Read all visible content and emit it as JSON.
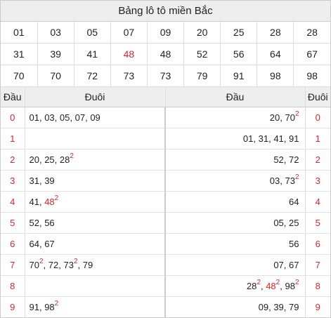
{
  "title": "Bảng lô tô miền Bắc",
  "numbers": [
    [
      "01",
      "03",
      "05",
      "07",
      "09",
      "20",
      "25",
      "28",
      "28"
    ],
    [
      "31",
      "39",
      "41",
      "48",
      "48",
      "52",
      "56",
      "64",
      "67"
    ],
    [
      "70",
      "70",
      "72",
      "73",
      "73",
      "79",
      "91",
      "98",
      "98"
    ]
  ],
  "highlight": {
    "row": 1,
    "col": 3
  },
  "headers": {
    "dau_left": "Đầu",
    "duoi_left": "Đuôi",
    "dau_right": "Đầu",
    "duoi_right": "Đuôi"
  },
  "rows": [
    {
      "head": "0",
      "left": [
        {
          "t": "01"
        },
        {
          "t": "03"
        },
        {
          "t": "05"
        },
        {
          "t": "07"
        },
        {
          "t": "09"
        }
      ],
      "right": [
        {
          "t": "20"
        },
        {
          "t": "70",
          "s": "2"
        }
      ],
      "tail": "0"
    },
    {
      "head": "1",
      "left": [],
      "right": [
        {
          "t": "01"
        },
        {
          "t": "31"
        },
        {
          "t": "41"
        },
        {
          "t": "91"
        }
      ],
      "tail": "1"
    },
    {
      "head": "2",
      "left": [
        {
          "t": "20"
        },
        {
          "t": "25"
        },
        {
          "t": "28",
          "s": "2"
        }
      ],
      "right": [
        {
          "t": "52"
        },
        {
          "t": "72"
        }
      ],
      "tail": "2"
    },
    {
      "head": "3",
      "left": [
        {
          "t": "31"
        },
        {
          "t": "39"
        }
      ],
      "right": [
        {
          "t": "03"
        },
        {
          "t": "73",
          "s": "2"
        }
      ],
      "tail": "3"
    },
    {
      "head": "4",
      "left": [
        {
          "t": "41"
        },
        {
          "t": "48",
          "s": "2",
          "r": true
        }
      ],
      "right": [
        {
          "t": "64"
        }
      ],
      "tail": "4"
    },
    {
      "head": "5",
      "left": [
        {
          "t": "52"
        },
        {
          "t": "56"
        }
      ],
      "right": [
        {
          "t": "05"
        },
        {
          "t": "25"
        }
      ],
      "tail": "5"
    },
    {
      "head": "6",
      "left": [
        {
          "t": "64"
        },
        {
          "t": "67"
        }
      ],
      "right": [
        {
          "t": "56"
        }
      ],
      "tail": "6"
    },
    {
      "head": "7",
      "left": [
        {
          "t": "70",
          "s": "2"
        },
        {
          "t": "72"
        },
        {
          "t": "73",
          "s": "2"
        },
        {
          "t": "79"
        }
      ],
      "right": [
        {
          "t": "07"
        },
        {
          "t": "67"
        }
      ],
      "tail": "7"
    },
    {
      "head": "8",
      "left": [],
      "right": [
        {
          "t": "28",
          "s": "2"
        },
        {
          "t": "48",
          "s": "2",
          "r": true
        },
        {
          "t": "98",
          "s": "2"
        }
      ],
      "tail": "8"
    },
    {
      "head": "9",
      "left": [
        {
          "t": "91"
        },
        {
          "t": "98",
          "s": "2"
        }
      ],
      "right": [
        {
          "t": "09"
        },
        {
          "t": "39"
        },
        {
          "t": "79"
        }
      ],
      "tail": "9"
    }
  ],
  "colors": {
    "accent_red": "#e0242b",
    "header_bg": "#eeeeee",
    "border": "#cccccc"
  }
}
